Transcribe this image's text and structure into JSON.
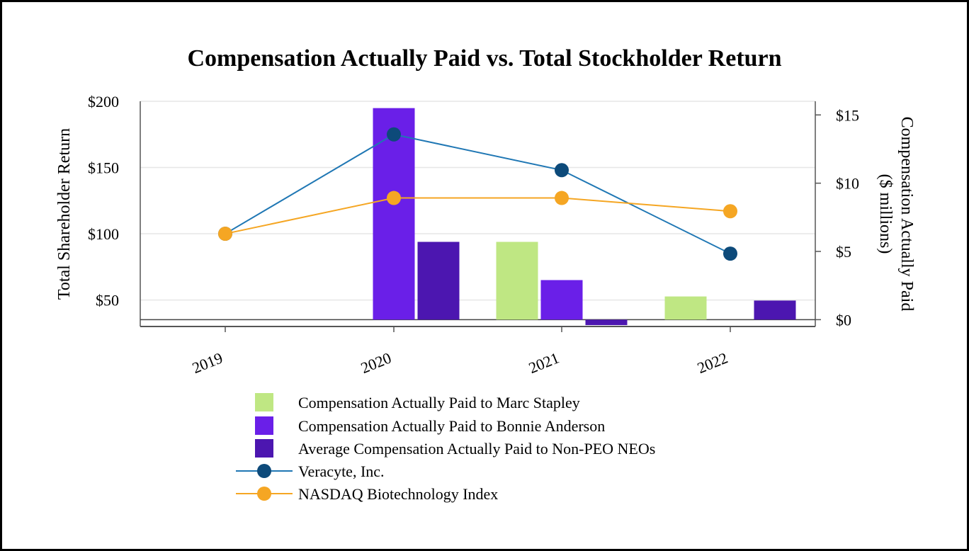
{
  "chart_data": {
    "type": "bar",
    "title": "Compensation Actually Paid vs. Total Stockholder Return",
    "categories": [
      "2019",
      "2020",
      "2021",
      "2022"
    ],
    "left_axis": {
      "label": "Total Shareholder Return",
      "range": [
        30,
        200
      ],
      "ticks": [
        50,
        100,
        150,
        200
      ],
      "tick_labels": [
        "$50",
        "$100",
        "$150",
        "$200"
      ]
    },
    "right_axis": {
      "label_lines": [
        "Compensation Actually Paid",
        "($ millions)"
      ],
      "range": [
        -0.5,
        16
      ],
      "ticks": [
        0,
        5,
        10,
        15
      ],
      "tick_labels": [
        "$0",
        "$5",
        "$10",
        "$15"
      ]
    },
    "bar_series": [
      {
        "name": "Compensation Actually Paid to Marc Stapley",
        "color": "#bfe783",
        "values": [
          null,
          null,
          5.7,
          1.7
        ]
      },
      {
        "name": "Compensation Actually Paid to Bonnie Anderson",
        "color": "#6a1fe8",
        "values": [
          null,
          15.5,
          2.9,
          null
        ]
      },
      {
        "name": "Average Compensation Actually Paid to Non-PEO NEOs",
        "color": "#4c16b0",
        "values": [
          null,
          5.7,
          -0.4,
          1.4
        ]
      }
    ],
    "line_series": [
      {
        "name": "Veracyte, Inc.",
        "color": "#1f77b4",
        "marker_color": "#0d4a7a",
        "values": [
          100,
          175,
          148,
          85
        ]
      },
      {
        "name": "NASDAQ Biotechnology Index",
        "color": "#f5a623",
        "marker_color": "#f5a623",
        "values": [
          100,
          127,
          127,
          117
        ]
      }
    ]
  }
}
